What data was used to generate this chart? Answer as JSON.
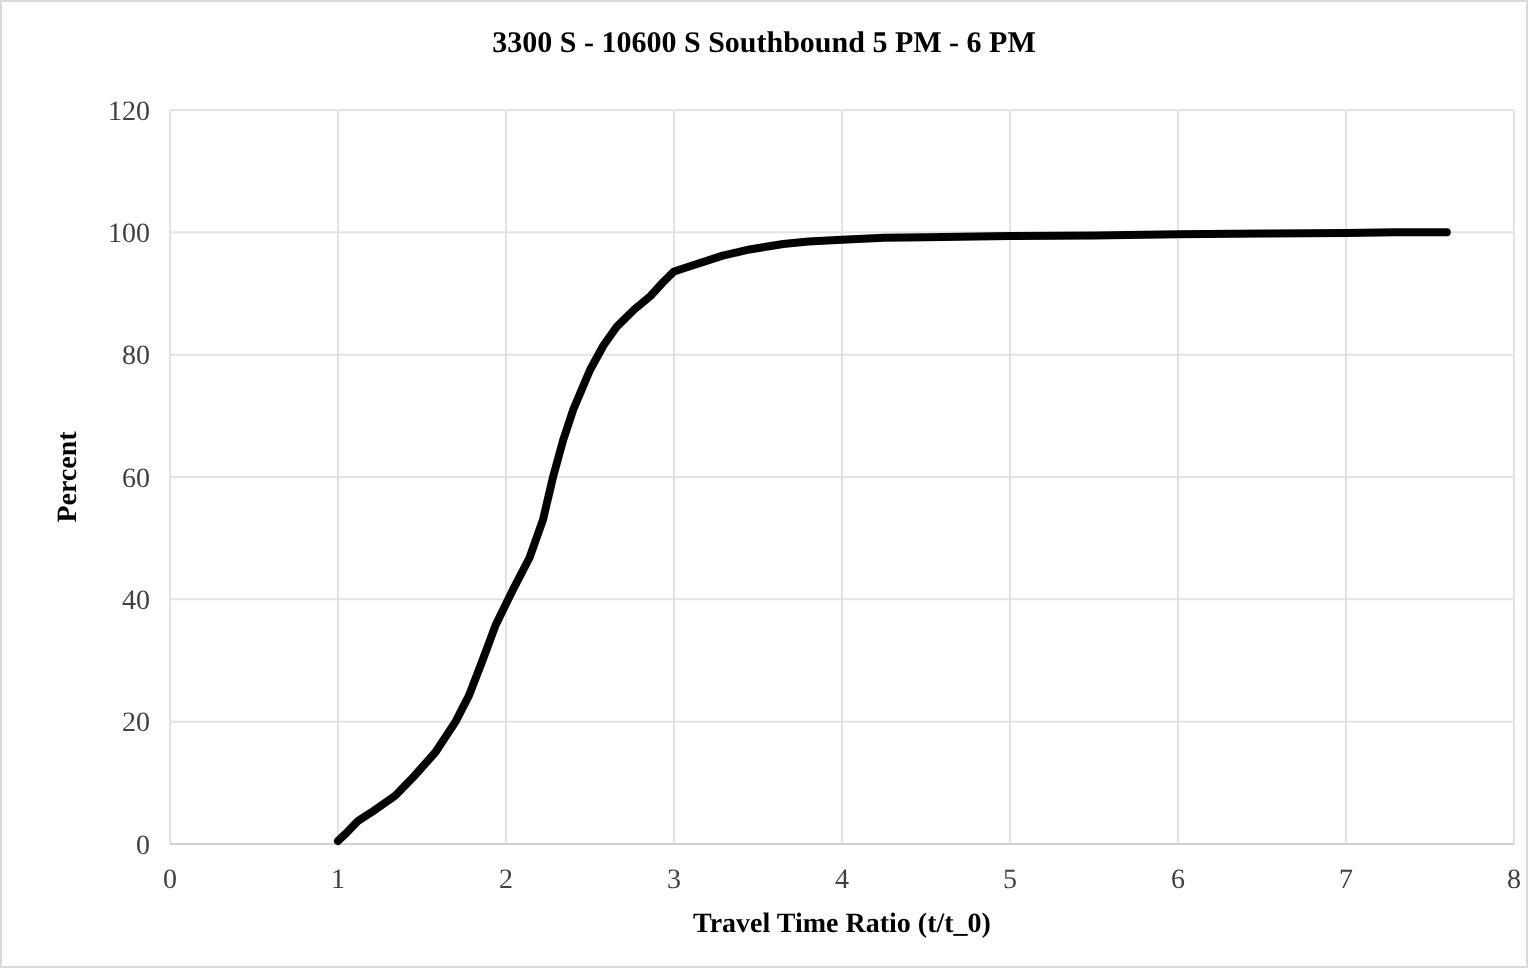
{
  "chart_data": {
    "type": "line",
    "title": "3300 S - 10600 S Southbound  5 PM - 6 PM",
    "xlabel": "Travel Time Ratio (t/t_0)",
    "ylabel": "Percent",
    "x": [
      1.0,
      1.05,
      1.12,
      1.2,
      1.34,
      1.45,
      1.58,
      1.7,
      1.78,
      1.86,
      1.94,
      2.04,
      2.14,
      2.22,
      2.28,
      2.34,
      2.4,
      2.5,
      2.58,
      2.66,
      2.76,
      2.86,
      2.94,
      3.0,
      3.1,
      3.29,
      3.45,
      3.65,
      3.8,
      4.0,
      4.25,
      4.5,
      5.0,
      5.5,
      6.0,
      6.5,
      7.0,
      7.3,
      7.6
    ],
    "series": [
      {
        "color": "#000000",
        "values": [
          0.5,
          1.8,
          3.8,
          5.2,
          7.9,
          11,
          15,
          20,
          24.3,
          30,
          35.9,
          41.5,
          46.8,
          53,
          60,
          66,
          71,
          77.5,
          81.5,
          84.6,
          87.3,
          89.6,
          92,
          93.6,
          94.5,
          96.2,
          97.2,
          98.1,
          98.5,
          98.8,
          99.1,
          99.2,
          99.4,
          99.5,
          99.7,
          99.8,
          99.9,
          100,
          100
        ]
      }
    ],
    "xlim": [
      0,
      8
    ],
    "ylim": [
      0,
      120
    ],
    "xticks": [
      0,
      1,
      2,
      3,
      4,
      5,
      6,
      7,
      8
    ],
    "yticks": [
      0,
      20,
      40,
      60,
      80,
      100,
      120
    ],
    "grid": true,
    "marker": "none",
    "line_style": "solid"
  }
}
